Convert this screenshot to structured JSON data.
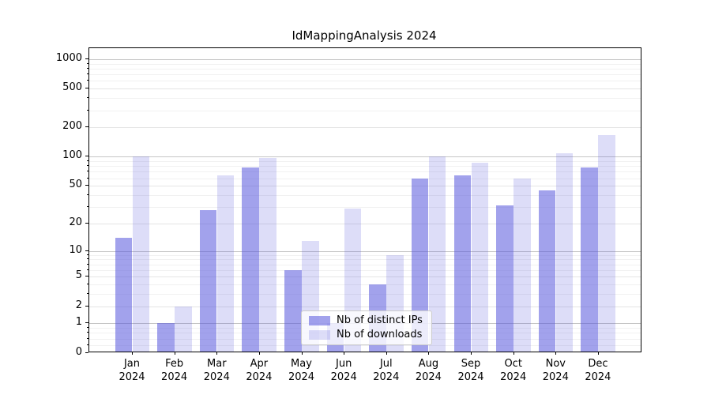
{
  "title": "IdMappingAnalysis 2024",
  "colors": {
    "ips_bar": "rgba(85,85,221,0.55)",
    "downloads_bar": "rgba(85,85,221,0.20)",
    "grid_major": "#c6c6c6",
    "grid_minor": "#f1f1f1",
    "axis": "#000000"
  },
  "legend": {
    "position": "lower center",
    "items": [
      {
        "label": "Nb of distinct IPs"
      },
      {
        "label": "Nb of downloads"
      }
    ]
  },
  "chart_data": {
    "type": "bar",
    "title": "IdMappingAnalysis 2024",
    "categories": [
      "Jan 2024",
      "Feb 2024",
      "Mar 2024",
      "Apr 2024",
      "May 2024",
      "Jun 2024",
      "Jul 2024",
      "Aug 2024",
      "Sep 2024",
      "Oct 2024",
      "Nov 2024",
      "Dec 2024"
    ],
    "series": [
      {
        "name": "Nb of distinct IPs",
        "values": [
          14,
          1,
          28,
          77,
          6,
          1,
          4,
          60,
          64,
          31,
          45,
          78
        ]
      },
      {
        "name": "Nb of downloads",
        "values": [
          100,
          2,
          64,
          97,
          13,
          29,
          9,
          100,
          86,
          60,
          108,
          168
        ]
      }
    ],
    "xlabel": "",
    "ylabel": "",
    "yscale": "log(value+1)",
    "ylim": [
      0,
      1300
    ],
    "y_ticks": [
      0,
      1,
      2,
      5,
      10,
      20,
      50,
      100,
      200,
      500,
      1000
    ],
    "grid": true,
    "legend_position": "lower center"
  }
}
